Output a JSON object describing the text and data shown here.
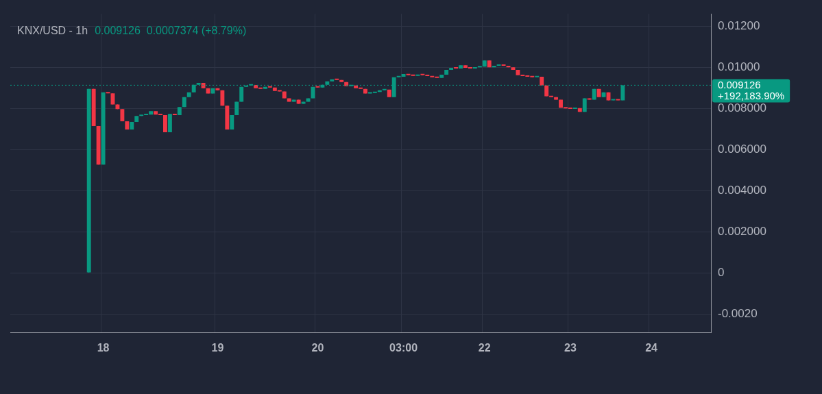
{
  "chart_data": {
    "type": "candlestick",
    "title": "KNX/USD - 1h",
    "subtitle": "0.009126  0.0007374 (+8.79%)",
    "categories": [
      null,
      null,
      null,
      null,
      null,
      null,
      null,
      null,
      null,
      null,
      null,
      null,
      null,
      null,
      null,
      null,
      null,
      null,
      null,
      "18",
      null,
      null,
      null,
      null,
      null,
      null,
      null,
      null,
      null,
      null,
      null,
      null,
      null,
      null,
      null,
      null,
      null,
      null,
      null,
      null,
      null,
      null,
      null,
      "19",
      null,
      null,
      null,
      null,
      null,
      null,
      null,
      null,
      null,
      null,
      null,
      null,
      null,
      null,
      null,
      null,
      null,
      null,
      null,
      null,
      "20",
      null,
      null,
      null,
      null,
      null,
      null,
      null,
      null,
      null,
      null,
      null,
      null,
      null,
      null,
      null,
      null,
      null,
      "03:00",
      null,
      null,
      null,
      null,
      null,
      null,
      null,
      null,
      null,
      null,
      null,
      null,
      null,
      null,
      null,
      null,
      "22",
      null,
      null,
      null,
      null,
      null,
      null,
      null,
      null,
      null,
      null,
      null,
      null,
      null,
      null,
      null,
      null,
      null,
      "23",
      null,
      null,
      null,
      null,
      null,
      null,
      null,
      null,
      null,
      null,
      null,
      null,
      null,
      null,
      null,
      null,
      "24",
      null,
      null,
      null,
      null,
      null,
      null,
      null,
      null,
      null,
      null,
      null,
      null
    ],
    "ohlc": [
      null,
      null,
      null,
      null,
      null,
      null,
      null,
      null,
      null,
      null,
      null,
      null,
      null,
      null,
      null,
      null,
      [
        0,
        0.00895,
        0,
        0.00895
      ],
      [
        0.00895,
        0.00895,
        0.00714,
        0.00714
      ],
      [
        0.00714,
        0.00714,
        0.00526,
        0.00526
      ],
      [
        0.00526,
        0.00878,
        0.00526,
        0.00878
      ],
      [
        0.00878,
        0.00878,
        0.00873,
        0.00873
      ],
      [
        0.00873,
        0.00873,
        0.00819,
        0.00819
      ],
      [
        0.00819,
        0.00819,
        0.00796,
        0.00796
      ],
      [
        0.00796,
        0.00796,
        0.00737,
        0.00737
      ],
      [
        0.00737,
        0.00737,
        0.00697,
        0.00697
      ],
      [
        0.00697,
        0.00734,
        0.00697,
        0.00734
      ],
      [
        0.00734,
        0.00763,
        0.00734,
        0.00763
      ],
      [
        0.00763,
        0.00767,
        0.00763,
        0.00767
      ],
      [
        0.00767,
        0.0077,
        0.00767,
        0.0077
      ],
      [
        0.0077,
        0.00786,
        0.0077,
        0.00786
      ],
      [
        0.00786,
        0.00786,
        0.0077,
        0.0077
      ],
      [
        0.0077,
        0.0077,
        0.00767,
        0.00767
      ],
      [
        0.00767,
        0.00767,
        0.00684,
        0.00684
      ],
      [
        0.00684,
        0.00773,
        0.00684,
        0.00773
      ],
      [
        0.00773,
        0.00773,
        0.00767,
        0.00767
      ],
      [
        0.00767,
        0.00806,
        0.00767,
        0.00806
      ],
      [
        0.00806,
        0.00855,
        0.00806,
        0.00855
      ],
      [
        0.00855,
        0.00878,
        0.00855,
        0.00878
      ],
      [
        0.00878,
        0.00915,
        0.00878,
        0.00915
      ],
      [
        0.00915,
        0.00924,
        0.00915,
        0.00924
      ],
      [
        0.00924,
        0.00924,
        0.00898,
        0.00898
      ],
      [
        0.00898,
        0.00898,
        0.00872,
        0.00872
      ],
      [
        0.00872,
        0.00898,
        0.00872,
        0.00898
      ],
      [
        0.00898,
        0.00898,
        0.00888,
        0.00888
      ],
      [
        0.00888,
        0.00888,
        0.00813,
        0.00813
      ],
      [
        0.00813,
        0.00813,
        0.00697,
        0.00697
      ],
      [
        0.00697,
        0.00767,
        0.00697,
        0.00767
      ],
      [
        0.00767,
        0.00832,
        0.00767,
        0.00832
      ],
      [
        0.00832,
        0.00905,
        0.00832,
        0.00905
      ],
      [
        0.00905,
        0.00911,
        0.00905,
        0.00911
      ],
      [
        0.00911,
        0.00914,
        0.00911,
        0.00914
      ],
      [
        0.00914,
        0.00914,
        0.00898,
        0.00898
      ],
      [
        0.00898,
        0.00898,
        0.00895,
        0.00895
      ],
      [
        0.00895,
        0.00905,
        0.00895,
        0.00905
      ],
      [
        0.00905,
        0.00905,
        0.00901,
        0.00901
      ],
      [
        0.00901,
        0.00901,
        0.00885,
        0.00885
      ],
      [
        0.00885,
        0.00885,
        0.00882,
        0.00882
      ],
      [
        0.00882,
        0.00882,
        0.00849,
        0.00849
      ],
      [
        0.00849,
        0.00849,
        0.00832,
        0.00832
      ],
      [
        0.00832,
        0.00842,
        0.00832,
        0.00842
      ],
      [
        0.00842,
        0.00842,
        0.00822,
        0.00822
      ],
      [
        0.00822,
        0.00832,
        0.00822,
        0.00832
      ],
      [
        0.00832,
        0.00849,
        0.00832,
        0.00849
      ],
      [
        0.00849,
        0.00905,
        0.00849,
        0.00905
      ],
      [
        0.00905,
        0.00905,
        0.00901,
        0.00901
      ],
      [
        0.00901,
        0.00915,
        0.00901,
        0.00915
      ],
      [
        0.00915,
        0.00931,
        0.00915,
        0.00931
      ],
      [
        0.00931,
        0.00941,
        0.00931,
        0.00941
      ],
      [
        0.00941,
        0.00941,
        0.00938,
        0.00938
      ],
      [
        0.00938,
        0.00938,
        0.00928,
        0.00928
      ],
      [
        0.00928,
        0.00928,
        0.00908,
        0.00908
      ],
      [
        0.00908,
        0.00911,
        0.00908,
        0.00911
      ],
      [
        0.00911,
        0.00911,
        0.00898,
        0.00898
      ],
      [
        0.00898,
        0.00898,
        0.00895,
        0.00895
      ],
      [
        0.00895,
        0.00895,
        0.00872,
        0.00872
      ],
      [
        0.00872,
        0.00875,
        0.00872,
        0.00875
      ],
      [
        0.00875,
        0.0088,
        0.00875,
        0.0088
      ],
      [
        0.0088,
        0.00888,
        0.0088,
        0.00888
      ],
      [
        0.00888,
        0.00891,
        0.00888,
        0.00891
      ],
      [
        0.00891,
        0.00891,
        0.00855,
        0.00855
      ],
      [
        0.00855,
        0.00951,
        0.00855,
        0.00951
      ],
      [
        0.00951,
        0.00954,
        0.00951,
        0.00954
      ],
      [
        0.00954,
        0.00967,
        0.00954,
        0.00967
      ],
      [
        0.00967,
        0.00967,
        0.00961,
        0.00961
      ],
      [
        0.00961,
        0.00961,
        0.00958,
        0.00958
      ],
      [
        0.00958,
        0.00964,
        0.00958,
        0.00964
      ],
      [
        0.00964,
        0.00964,
        0.00961,
        0.00961
      ],
      [
        0.00961,
        0.00961,
        0.00957,
        0.00957
      ],
      [
        0.00957,
        0.00957,
        0.00951,
        0.00951
      ],
      [
        0.00951,
        0.00951,
        0.00948,
        0.00948
      ],
      [
        0.00948,
        0.00964,
        0.00948,
        0.00964
      ],
      [
        0.00964,
        0.00987,
        0.00964,
        0.00987
      ],
      [
        0.00987,
        0.00997,
        0.00987,
        0.00997
      ],
      [
        0.00997,
        0.00997,
        0.00994,
        0.00994
      ],
      [
        0.00994,
        0.0101,
        0.00994,
        0.0101
      ],
      [
        0.0101,
        0.0101,
        0.00997,
        0.00997
      ],
      [
        0.00997,
        0.00997,
        0.00994,
        0.00994
      ],
      [
        0.00994,
        0.01,
        0.00994,
        0.01
      ],
      [
        0.01,
        0.01003,
        0.01,
        0.01003
      ],
      [
        0.01003,
        0.01033,
        0.01003,
        0.01033
      ],
      [
        0.01033,
        0.01033,
        0.01,
        0.01
      ],
      [
        0.01,
        0.01007,
        0.01,
        0.01007
      ],
      [
        0.01007,
        0.0101,
        0.01007,
        0.0101
      ],
      [
        0.0101,
        0.0101,
        0.01007,
        0.01007
      ],
      [
        0.01007,
        0.01007,
        0.01,
        0.01
      ],
      [
        0.01,
        0.01,
        0.00987,
        0.00987
      ],
      [
        0.00987,
        0.00987,
        0.00961,
        0.00961
      ],
      [
        0.00961,
        0.00961,
        0.00957,
        0.00957
      ],
      [
        0.00957,
        0.00957,
        0.00954,
        0.00954
      ],
      [
        0.00954,
        0.00954,
        0.00951,
        0.00951
      ],
      [
        0.00951,
        0.00954,
        0.00951,
        0.00954
      ],
      [
        0.00954,
        0.00954,
        0.00911,
        0.00911
      ],
      [
        0.00911,
        0.00911,
        0.00859,
        0.00859
      ],
      [
        0.00859,
        0.00859,
        0.00855,
        0.00855
      ],
      [
        0.00855,
        0.00855,
        0.00842,
        0.00842
      ],
      [
        0.00842,
        0.00842,
        0.00803,
        0.00803
      ],
      [
        0.00803,
        0.00803,
        0.008,
        0.008
      ],
      [
        0.008,
        0.008,
        0.00797,
        0.00797
      ],
      [
        0.00797,
        0.00801,
        0.00797,
        0.00801
      ],
      [
        0.00801,
        0.00801,
        0.00783,
        0.00783
      ],
      [
        0.00783,
        0.00849,
        0.00783,
        0.00849
      ],
      [
        0.00849,
        0.00849,
        0.00842,
        0.00842
      ],
      [
        0.00842,
        0.00895,
        0.00842,
        0.00895
      ],
      [
        0.00895,
        0.00895,
        0.00855,
        0.00855
      ],
      [
        0.00855,
        0.00878,
        0.00855,
        0.00878
      ],
      [
        0.00878,
        0.00878,
        0.00839,
        0.00839
      ],
      [
        0.00839,
        0.00842,
        0.00839,
        0.00842
      ],
      [
        0.00842,
        0.00842,
        0.00839,
        0.00839
      ],
      [
        0.00839,
        0.009126,
        0.00839,
        0.009126
      ],
      null,
      null,
      null,
      null,
      null,
      null,
      null,
      null,
      null,
      null,
      null,
      null,
      null,
      null,
      null,
      null,
      null,
      null
    ],
    "ylim": [
      -0.0029,
      0.0126
    ],
    "yticks": [
      {
        "value": -0.002,
        "label": "-0.0020"
      },
      0,
      {
        "value": 0.002,
        "label": "0.002000"
      },
      {
        "value": 0.004,
        "label": "0.004000"
      },
      {
        "value": 0.006,
        "label": "0.006000"
      },
      {
        "value": 0.008,
        "label": "0.008000"
      },
      {
        "value": 0.01,
        "label": "0.01000"
      },
      {
        "value": 0.012,
        "label": "0.01200"
      }
    ],
    "grid": true,
    "ref_lines": [
      {
        "axis": "y",
        "value": 0.009126,
        "label": "0.009126",
        "color": "#089981",
        "line_style": "dotted"
      }
    ],
    "annotations": [
      "+192,183.90%"
    ]
  }
}
